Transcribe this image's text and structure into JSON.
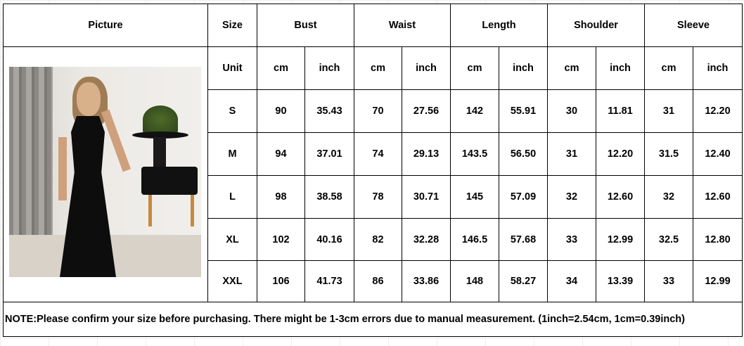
{
  "header": {
    "picture": "Picture",
    "size": "Size",
    "measures": [
      "Bust",
      "Waist",
      "Length",
      "Shoulder",
      "Sleeve"
    ]
  },
  "unit_row": {
    "label": "Unit",
    "units": [
      "cm",
      "inch",
      "cm",
      "inch",
      "cm",
      "inch",
      "cm",
      "inch",
      "cm",
      "inch"
    ]
  },
  "rows": [
    {
      "size": "S",
      "values": [
        "90",
        "35.43",
        "70",
        "27.56",
        "142",
        "55.91",
        "30",
        "11.81",
        "31",
        "12.20"
      ]
    },
    {
      "size": "M",
      "values": [
        "94",
        "37.01",
        "74",
        "29.13",
        "143.5",
        "56.50",
        "31",
        "12.20",
        "31.5",
        "12.40"
      ]
    },
    {
      "size": "L",
      "values": [
        "98",
        "38.58",
        "78",
        "30.71",
        "145",
        "57.09",
        "32",
        "12.60",
        "32",
        "12.60"
      ]
    },
    {
      "size": "XL",
      "values": [
        "102",
        "40.16",
        "82",
        "32.28",
        "146.5",
        "57.68",
        "33",
        "12.99",
        "32.5",
        "12.80"
      ]
    },
    {
      "size": "XXL",
      "values": [
        "106",
        "41.73",
        "86",
        "33.86",
        "148",
        "58.27",
        "34",
        "13.39",
        "33",
        "12.99"
      ]
    }
  ],
  "note": "NOTE:Please confirm your size before purchasing. There might be 1-3cm errors due to manual measurement.  (1inch=2.54cm, 1cm=0.39inch)",
  "image": {
    "subject": "woman in black jumpsuit"
  }
}
